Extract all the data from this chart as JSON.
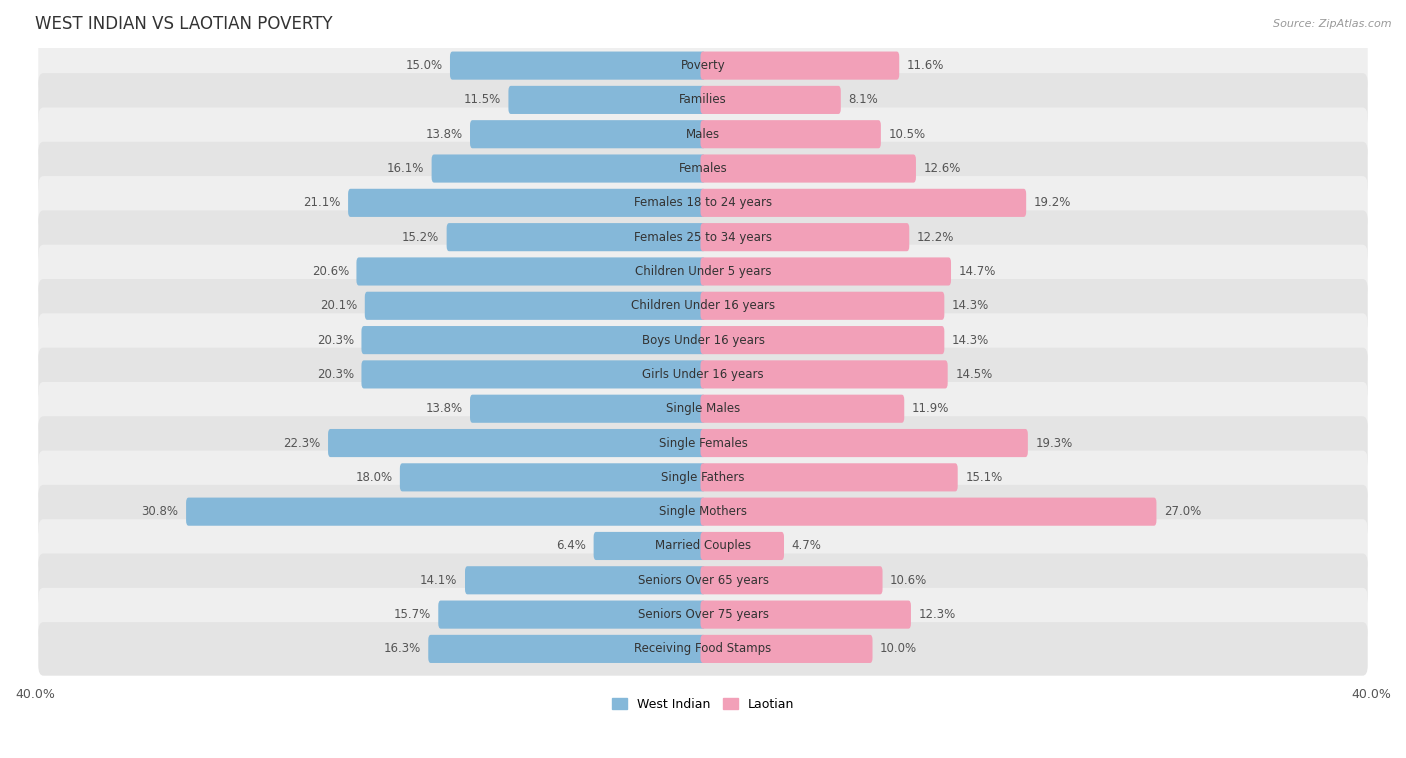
{
  "title": "WEST INDIAN VS LAOTIAN POVERTY",
  "source": "Source: ZipAtlas.com",
  "categories": [
    "Poverty",
    "Families",
    "Males",
    "Females",
    "Females 18 to 24 years",
    "Females 25 to 34 years",
    "Children Under 5 years",
    "Children Under 16 years",
    "Boys Under 16 years",
    "Girls Under 16 years",
    "Single Males",
    "Single Females",
    "Single Fathers",
    "Single Mothers",
    "Married Couples",
    "Seniors Over 65 years",
    "Seniors Over 75 years",
    "Receiving Food Stamps"
  ],
  "west_indian": [
    15.0,
    11.5,
    13.8,
    16.1,
    21.1,
    15.2,
    20.6,
    20.1,
    20.3,
    20.3,
    13.8,
    22.3,
    18.0,
    30.8,
    6.4,
    14.1,
    15.7,
    16.3
  ],
  "laotian": [
    11.6,
    8.1,
    10.5,
    12.6,
    19.2,
    12.2,
    14.7,
    14.3,
    14.3,
    14.5,
    11.9,
    19.3,
    15.1,
    27.0,
    4.7,
    10.6,
    12.3,
    10.0
  ],
  "west_indian_color": "#85B8D9",
  "laotian_color": "#F2A0B8",
  "row_bg_odd": "#EFEFEF",
  "row_bg_even": "#E4E4E4",
  "axis_limit": 40.0,
  "label_fontsize": 8.5,
  "title_fontsize": 12,
  "bar_height": 0.52
}
